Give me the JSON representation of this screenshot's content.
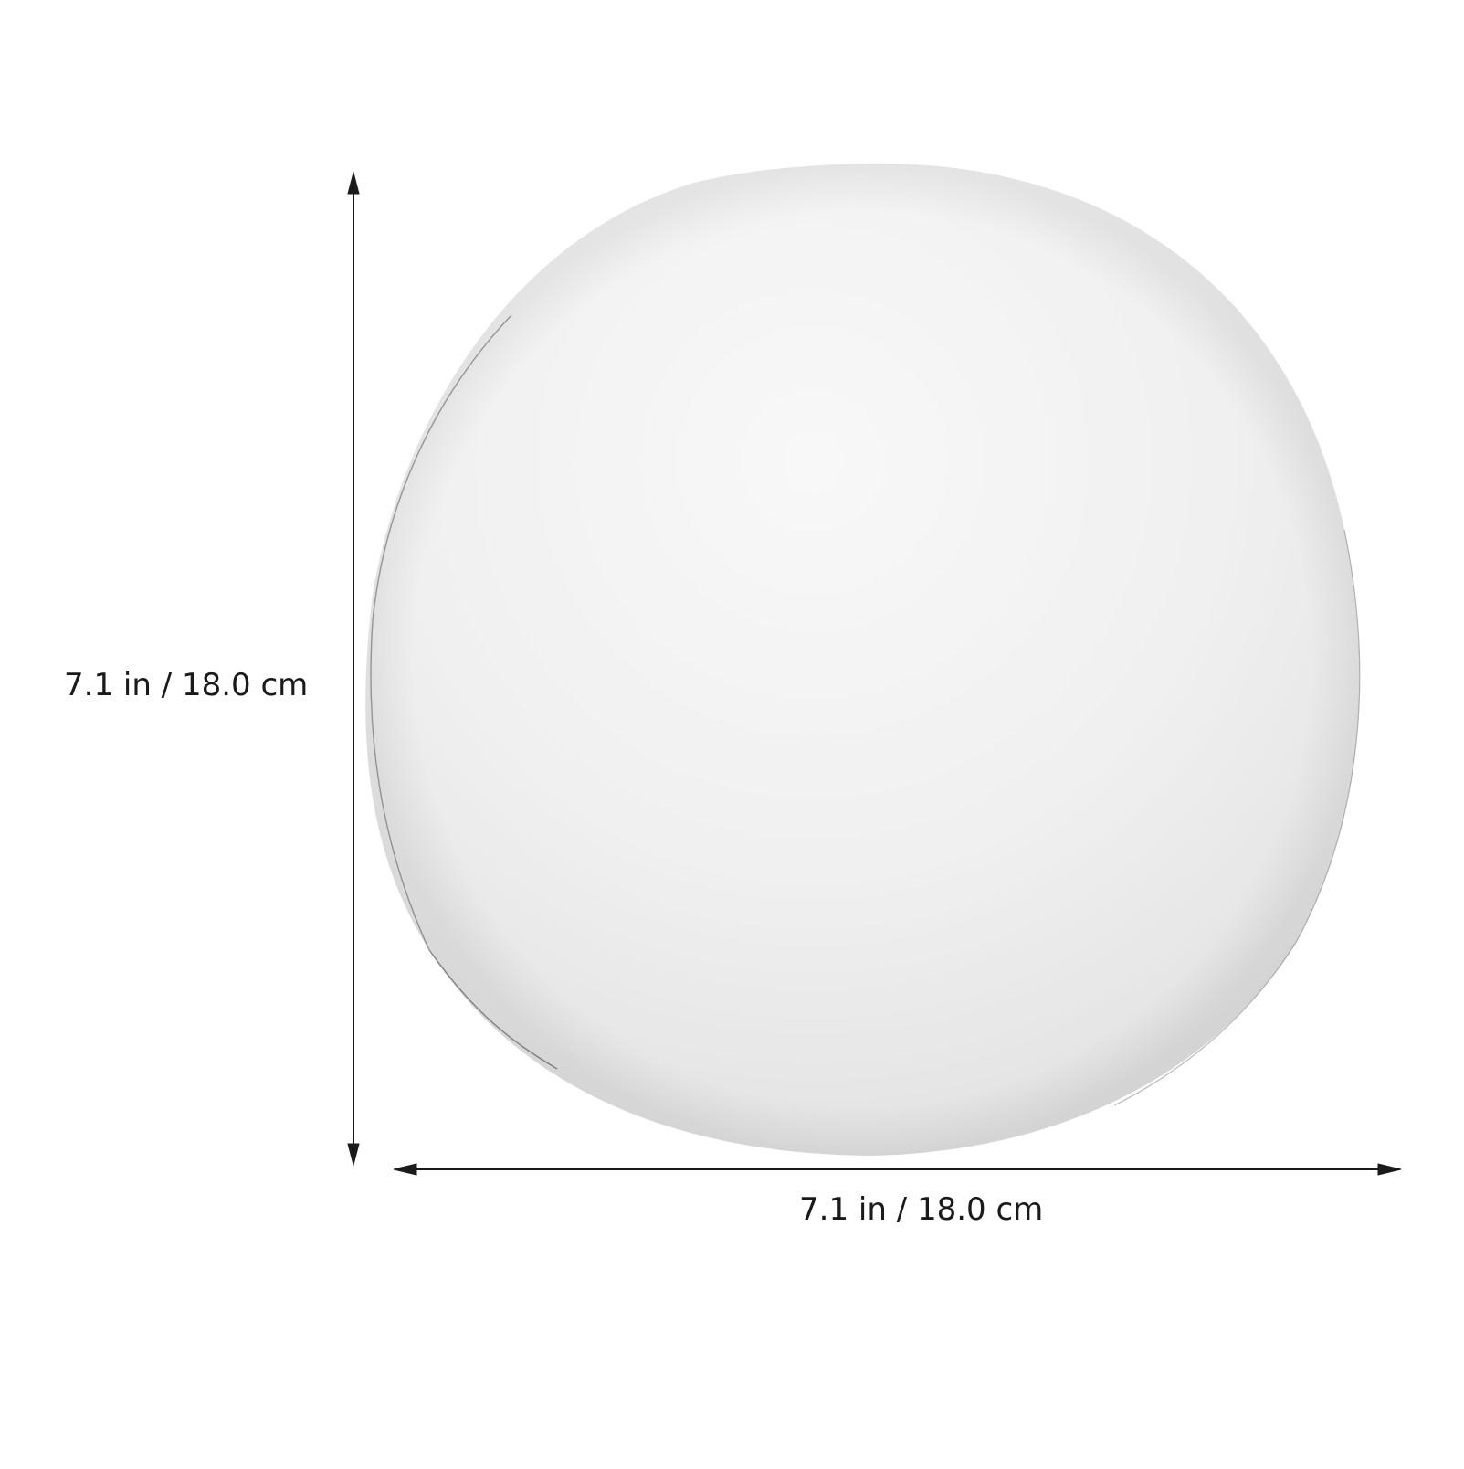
{
  "product": {
    "name": "white sphere lamp shade",
    "colors": {
      "background": "#ffffff",
      "sphere_highlight": "#f7f7f7",
      "sphere_mid": "#efefef",
      "sphere_shadow": "#e2e2e2",
      "line": "#1a1a1a"
    }
  },
  "dimensions": {
    "height_label": "7.1 in / 18.0 cm",
    "width_label": "7.1 in / 18.0 cm"
  }
}
